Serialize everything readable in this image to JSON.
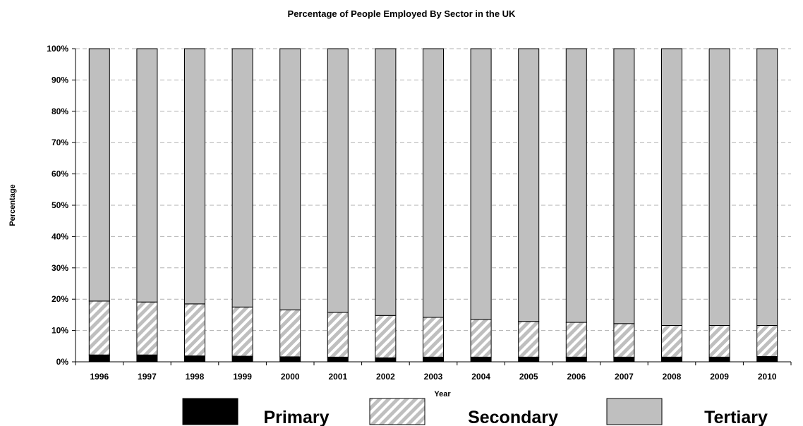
{
  "chart_data": {
    "type": "bar",
    "stacked": true,
    "title": "Percentage of People Employed By Sector in the UK",
    "xlabel": "Year",
    "ylabel": "Percentage",
    "categories": [
      "1996",
      "1997",
      "1998",
      "1999",
      "2000",
      "2001",
      "2002",
      "2003",
      "2004",
      "2005",
      "2006",
      "2007",
      "2008",
      "2009",
      "2010"
    ],
    "series": [
      {
        "name": "Primary",
        "color": "#000000",
        "pattern": "solid",
        "values": [
          2.2,
          2.2,
          1.9,
          1.8,
          1.6,
          1.5,
          1.3,
          1.5,
          1.5,
          1.5,
          1.5,
          1.5,
          1.5,
          1.5,
          1.7
        ]
      },
      {
        "name": "Secondary",
        "color": "#bfbfbf",
        "pattern": "diagonal-hatch",
        "values": [
          17.2,
          16.9,
          16.6,
          15.7,
          15.0,
          14.3,
          13.5,
          12.7,
          12.0,
          11.4,
          11.1,
          10.7,
          10.1,
          10.1,
          9.9
        ]
      },
      {
        "name": "Tertiary",
        "color": "#bfbfbf",
        "pattern": "solid",
        "values": [
          80.6,
          80.9,
          81.5,
          82.5,
          83.4,
          84.2,
          85.2,
          85.8,
          86.5,
          87.1,
          87.4,
          87.8,
          88.4,
          88.4,
          88.4
        ]
      }
    ],
    "ylim": [
      0,
      100
    ],
    "yticks": [
      "0%",
      "10%",
      "20%",
      "30%",
      "40%",
      "50%",
      "60%",
      "70%",
      "80%",
      "90%",
      "100%"
    ],
    "grid": true,
    "legend_position": "bottom"
  }
}
